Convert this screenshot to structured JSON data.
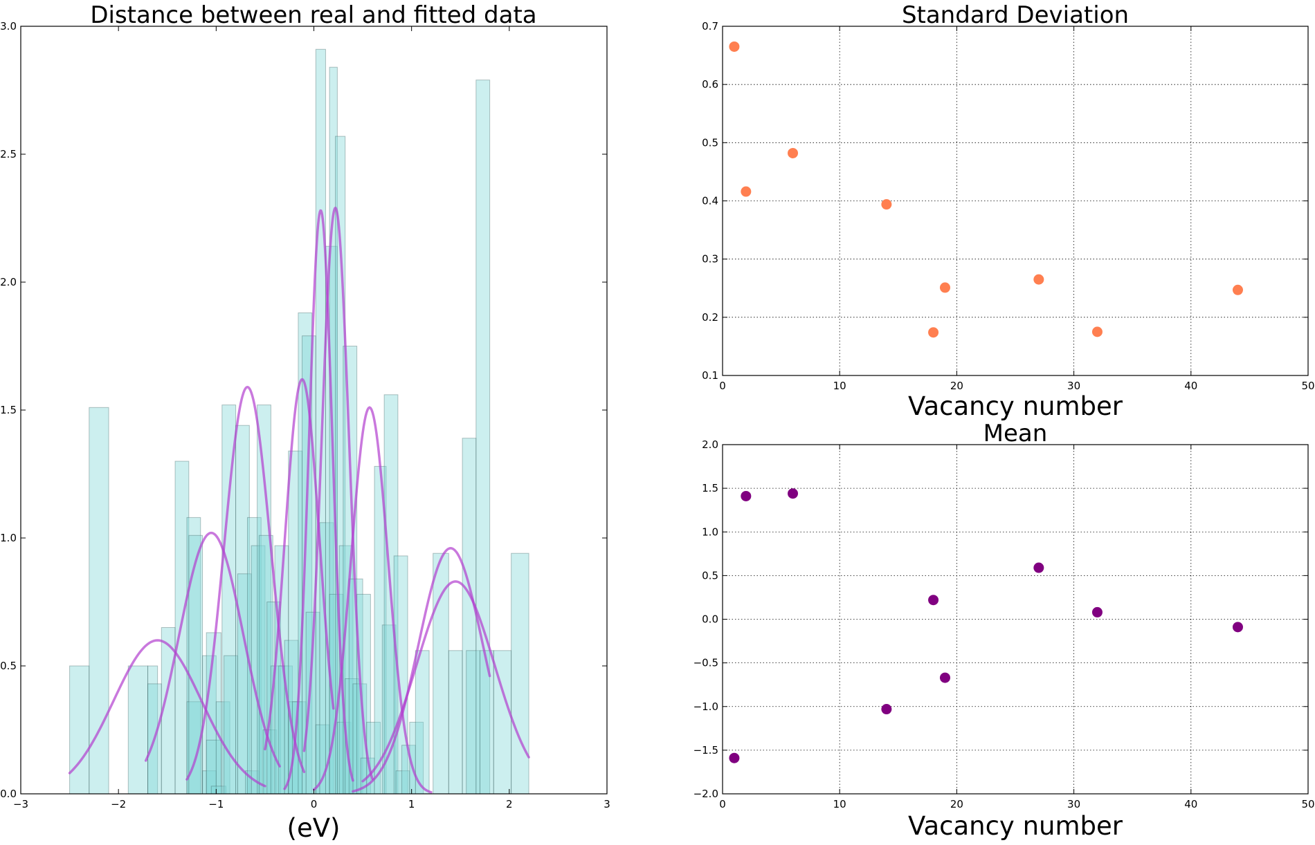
{
  "chart_data": [
    {
      "type": "bar",
      "title": "Distance between real and fitted data",
      "xlabel": "(eV)",
      "ylabel": "",
      "xlim": [
        -3,
        3
      ],
      "ylim": [
        0,
        3.0
      ],
      "xticks": [
        "−3",
        "−2",
        "−1",
        "0",
        "1",
        "2",
        "3"
      ],
      "yticks": [
        "0.0",
        "0.5",
        "1.0",
        "1.5",
        "2.0",
        "2.5",
        "3.0"
      ],
      "grid": false,
      "bar_color": "#7fd8d8",
      "curve_color": "#b23fcf",
      "histogram_bars": [
        {
          "x0": -2.5,
          "x1": -2.3,
          "h": 0.5
        },
        {
          "x0": -2.3,
          "x1": -2.1,
          "h": 1.51
        },
        {
          "x0": -1.9,
          "x1": -1.7,
          "h": 0.5
        },
        {
          "x0": -1.7,
          "x1": -1.6,
          "h": 0.5
        },
        {
          "x0": -1.7,
          "x1": -1.56,
          "h": 0.43
        },
        {
          "x0": -1.56,
          "x1": -1.42,
          "h": 0.65
        },
        {
          "x0": -1.42,
          "x1": -1.28,
          "h": 1.3
        },
        {
          "x0": -1.3,
          "x1": -1.16,
          "h": 1.08
        },
        {
          "x0": -1.3,
          "x1": -1.15,
          "h": 0.36
        },
        {
          "x0": -1.28,
          "x1": -1.14,
          "h": 1.01
        },
        {
          "x0": -1.14,
          "x1": -1.0,
          "h": 0.54
        },
        {
          "x0": -1.14,
          "x1": -1.0,
          "h": 0.09
        },
        {
          "x0": -1.1,
          "x1": -0.95,
          "h": 0.63
        },
        {
          "x0": -1.1,
          "x1": -0.95,
          "h": 0.21
        },
        {
          "x0": -1.0,
          "x1": -0.86,
          "h": 0.36
        },
        {
          "x0": -1.05,
          "x1": -0.9,
          "h": 0.03
        },
        {
          "x0": -0.94,
          "x1": -0.8,
          "h": 1.52
        },
        {
          "x0": -0.92,
          "x1": -0.78,
          "h": 0.54
        },
        {
          "x0": -0.8,
          "x1": -0.66,
          "h": 1.44
        },
        {
          "x0": -0.78,
          "x1": -0.64,
          "h": 0.86
        },
        {
          "x0": -0.7,
          "x1": -0.56,
          "h": 0.09
        },
        {
          "x0": -0.68,
          "x1": -0.54,
          "h": 1.08
        },
        {
          "x0": -0.64,
          "x1": -0.5,
          "h": 0.97
        },
        {
          "x0": -0.58,
          "x1": -0.44,
          "h": 1.52
        },
        {
          "x0": -0.56,
          "x1": -0.42,
          "h": 1.01
        },
        {
          "x0": -0.52,
          "x1": -0.38,
          "h": 0.25
        },
        {
          "x0": -0.48,
          "x1": -0.34,
          "h": 0.75
        },
        {
          "x0": -0.44,
          "x1": -0.3,
          "h": 0.5
        },
        {
          "x0": -0.4,
          "x1": -0.26,
          "h": 0.97
        },
        {
          "x0": -0.36,
          "x1": -0.22,
          "h": 0.5
        },
        {
          "x0": -0.3,
          "x1": -0.16,
          "h": 0.6
        },
        {
          "x0": -0.26,
          "x1": -0.12,
          "h": 0.36
        },
        {
          "x0": -0.26,
          "x1": -0.12,
          "h": 1.34
        },
        {
          "x0": -0.22,
          "x1": -0.08,
          "h": 0.36
        },
        {
          "x0": -0.16,
          "x1": -0.02,
          "h": 1.88
        },
        {
          "x0": -0.12,
          "x1": 0.02,
          "h": 1.79
        },
        {
          "x0": -0.08,
          "x1": 0.06,
          "h": 0.71
        },
        {
          "x0": 0.02,
          "x1": 0.12,
          "h": 2.91
        },
        {
          "x0": 0.02,
          "x1": 0.16,
          "h": 0.27
        },
        {
          "x0": 0.06,
          "x1": 0.2,
          "h": 1.06
        },
        {
          "x0": 0.12,
          "x1": 0.24,
          "h": 2.14
        },
        {
          "x0": 0.16,
          "x1": 0.24,
          "h": 2.84
        },
        {
          "x0": 0.16,
          "x1": 0.3,
          "h": 0.78
        },
        {
          "x0": 0.22,
          "x1": 0.32,
          "h": 2.57
        },
        {
          "x0": 0.24,
          "x1": 0.38,
          "h": 0.28
        },
        {
          "x0": 0.26,
          "x1": 0.4,
          "h": 0.97
        },
        {
          "x0": 0.3,
          "x1": 0.44,
          "h": 1.75
        },
        {
          "x0": 0.32,
          "x1": 0.46,
          "h": 0.45
        },
        {
          "x0": 0.36,
          "x1": 0.5,
          "h": 0.84
        },
        {
          "x0": 0.4,
          "x1": 0.54,
          "h": 0.43
        },
        {
          "x0": 0.44,
          "x1": 0.58,
          "h": 0.78
        },
        {
          "x0": 0.48,
          "x1": 0.62,
          "h": 0.14
        },
        {
          "x0": 0.54,
          "x1": 0.68,
          "h": 0.28
        },
        {
          "x0": 0.62,
          "x1": 0.74,
          "h": 1.28
        },
        {
          "x0": 0.7,
          "x1": 0.84,
          "h": 0.66
        },
        {
          "x0": 0.72,
          "x1": 0.86,
          "h": 1.56
        },
        {
          "x0": 0.82,
          "x1": 0.96,
          "h": 0.93
        },
        {
          "x0": 0.84,
          "x1": 0.98,
          "h": 0.09
        },
        {
          "x0": 0.9,
          "x1": 1.04,
          "h": 0.19
        },
        {
          "x0": 0.98,
          "x1": 1.12,
          "h": 0.28
        },
        {
          "x0": 1.04,
          "x1": 1.18,
          "h": 0.56
        },
        {
          "x0": 1.22,
          "x1": 1.38,
          "h": 0.94
        },
        {
          "x0": 1.38,
          "x1": 1.52,
          "h": 0.56
        },
        {
          "x0": 1.52,
          "x1": 1.66,
          "h": 1.39
        },
        {
          "x0": 1.56,
          "x1": 1.7,
          "h": 0.56
        },
        {
          "x0": 1.66,
          "x1": 1.8,
          "h": 2.79
        },
        {
          "x0": 1.7,
          "x1": 1.84,
          "h": 0.56
        },
        {
          "x0": 1.84,
          "x1": 2.02,
          "h": 0.56
        },
        {
          "x0": 2.02,
          "x1": 2.2,
          "h": 0.94
        }
      ],
      "fitted_gaussians": [
        {
          "mean": -1.6,
          "amp": 0.6,
          "sigma": 0.45,
          "from": -2.5,
          "to": -0.5
        },
        {
          "mean": -1.05,
          "amp": 1.02,
          "sigma": 0.33,
          "from": -1.72,
          "to": -0.35
        },
        {
          "mean": -0.68,
          "amp": 1.59,
          "sigma": 0.24,
          "from": -1.3,
          "to": -0.1
        },
        {
          "mean": -0.12,
          "amp": 1.62,
          "sigma": 0.18,
          "from": -0.5,
          "to": 0.2
        },
        {
          "mean": 0.07,
          "amp": 2.28,
          "sigma": 0.12,
          "from": -0.3,
          "to": 0.4
        },
        {
          "mean": 0.22,
          "amp": 2.29,
          "sigma": 0.14,
          "from": -0.1,
          "to": 0.6
        },
        {
          "mean": 0.57,
          "amp": 1.51,
          "sigma": 0.19,
          "from": 0.0,
          "to": 1.2
        },
        {
          "mean": 1.4,
          "amp": 0.96,
          "sigma": 0.33,
          "from": 0.4,
          "to": 1.8
        },
        {
          "mean": 1.45,
          "amp": 0.83,
          "sigma": 0.4,
          "from": 0.5,
          "to": 2.2
        }
      ]
    },
    {
      "type": "scatter",
      "title": "Standard Deviation",
      "xlabel": "Vacancy number",
      "ylabel": "",
      "xlim": [
        0,
        50
      ],
      "ylim": [
        0.1,
        0.7
      ],
      "xticks": [
        "0",
        "10",
        "20",
        "30",
        "40",
        "50"
      ],
      "yticks": [
        "0.1",
        "0.2",
        "0.3",
        "0.4",
        "0.5",
        "0.6",
        "0.7"
      ],
      "grid": true,
      "color": "#ff7f50",
      "points": [
        {
          "x": 1,
          "y": 0.665
        },
        {
          "x": 2,
          "y": 0.416
        },
        {
          "x": 6,
          "y": 0.482
        },
        {
          "x": 14,
          "y": 0.394
        },
        {
          "x": 18,
          "y": 0.174
        },
        {
          "x": 19,
          "y": 0.251
        },
        {
          "x": 27,
          "y": 0.265
        },
        {
          "x": 32,
          "y": 0.175
        },
        {
          "x": 44,
          "y": 0.247
        }
      ]
    },
    {
      "type": "scatter",
      "title": "Mean",
      "xlabel": "Vacancy number",
      "ylabel": "",
      "xlim": [
        0,
        50
      ],
      "ylim": [
        -2.0,
        2.0
      ],
      "xticks": [
        "0",
        "10",
        "20",
        "30",
        "40",
        "50"
      ],
      "yticks": [
        "−2.0",
        "−1.5",
        "−1.0",
        "−0.5",
        "0.0",
        "0.5",
        "1.0",
        "1.5",
        "2.0"
      ],
      "grid": true,
      "color": "#800080",
      "points": [
        {
          "x": 1,
          "y": -1.59
        },
        {
          "x": 2,
          "y": 1.41
        },
        {
          "x": 6,
          "y": 1.44
        },
        {
          "x": 14,
          "y": -1.03
        },
        {
          "x": 18,
          "y": 0.22
        },
        {
          "x": 19,
          "y": -0.67
        },
        {
          "x": 27,
          "y": 0.59
        },
        {
          "x": 32,
          "y": 0.08
        },
        {
          "x": 44,
          "y": -0.09
        }
      ]
    }
  ]
}
